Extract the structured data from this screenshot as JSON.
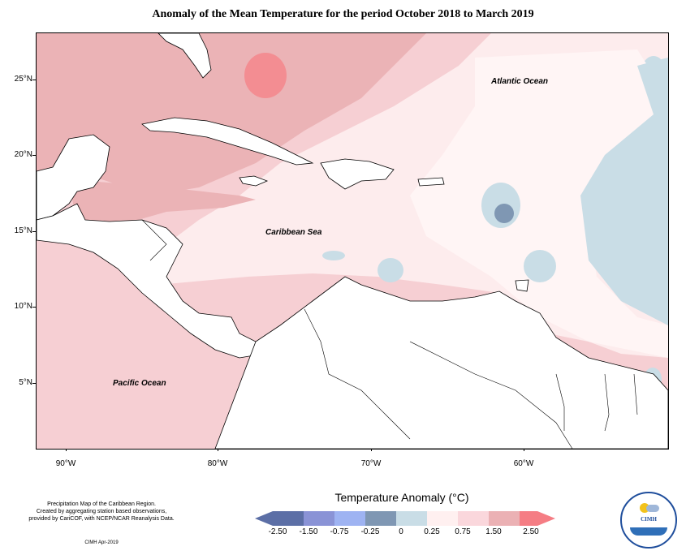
{
  "title": "Anomaly of the Mean Temperature for the period October 2018 to March 2019",
  "map": {
    "labels": {
      "atlantic": "Atlantic Ocean",
      "caribbean": "Caribbean Sea",
      "pacific": "Pacific Ocean"
    },
    "lat_ticks": [
      "25°N",
      "20°N",
      "15°N",
      "10°N",
      "5°N"
    ],
    "lon_ticks": [
      "90°W",
      "80°W",
      "70°W",
      "60°W"
    ],
    "colors": {
      "neg_250": "#5c6fa6",
      "neg_150": "#8a93d6",
      "neg_075": "#9eb3f2",
      "neg_025": "#7f97b3",
      "neg_0": "#c9dde6",
      "pos_025": "#fff0f0",
      "pos_075": "#fad7dc",
      "pos_150": "#ebb1b4",
      "pos_250": "#f57d84"
    }
  },
  "caption": {
    "line1": "Precipitation Map of the Caribbean Region.",
    "line2": "Created by aggregating station based observations,",
    "line3": "provided by CariCOF, with NCEP/NCAR Reanalysis Data.",
    "credit": "CIMH Apr-2019"
  },
  "legend": {
    "title": "Temperature Anomaly (°C)",
    "tick_labels": [
      "-2.50",
      "-1.50",
      "-0.75",
      "-0.25",
      "0",
      "0.25",
      "0.75",
      "1.50",
      "2.50"
    ],
    "swatches": [
      "#5c6fa6",
      "#8a93d6",
      "#9eb3f2",
      "#7f97b3",
      "#c9dde6",
      "#fff0f0",
      "#fad7dc",
      "#ebb1b4",
      "#f57d84"
    ]
  },
  "logo": {
    "text": "CIMH"
  }
}
